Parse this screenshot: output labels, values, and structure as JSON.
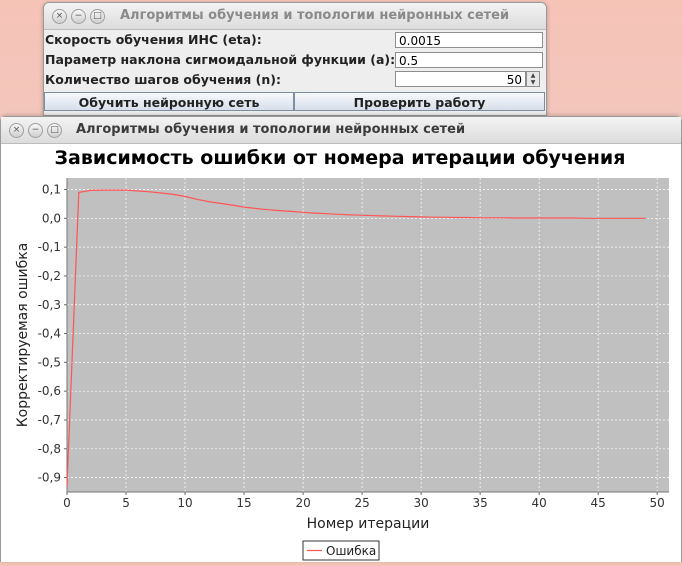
{
  "settings_window": {
    "title": "Алгоритмы обучения и топологии нейронных сетей",
    "fields": {
      "eta_label": "Скорость обучения ИНС (eta):",
      "eta_value": "0.0015",
      "a_label": "Параметр наклона сигмоидальной функции (a):",
      "a_value": "0.5",
      "n_label": "Количество шагов обучения (n):",
      "n_value": "50"
    },
    "buttons": {
      "train": "Обучить нейронную сеть",
      "check": "Проверить работу"
    }
  },
  "chart_window": {
    "title": "Алгоритмы обучения и топологии нейронных сетей"
  },
  "window_controls": {
    "close": "×",
    "minimize": "−",
    "maximize": "□"
  },
  "chart_data": {
    "type": "line",
    "title": "Зависимость ошибки от номера итерации обучения",
    "xlabel": "Номер итерации",
    "ylabel": "Корректируемая ошибка",
    "xlim": [
      0,
      51
    ],
    "ylim": [
      -0.95,
      0.14
    ],
    "x_ticks": [
      0,
      5,
      10,
      15,
      20,
      25,
      30,
      35,
      40,
      45,
      50
    ],
    "y_ticks": [
      0.1,
      0.0,
      -0.1,
      -0.2,
      -0.3,
      -0.4,
      -0.5,
      -0.6,
      -0.7,
      -0.8,
      -0.9
    ],
    "y_tick_labels": [
      "0,1",
      "0,0",
      "-0,1",
      "-0,2",
      "-0,3",
      "-0,4",
      "-0,5",
      "-0,6",
      "-0,7",
      "-0,8",
      "-0,9"
    ],
    "grid": true,
    "legend_position": "bottom-center",
    "background_color": "#c0c0c0",
    "series": [
      {
        "name": "Ошибка",
        "color": "#ff5555",
        "x": [
          0,
          1,
          2,
          3,
          4,
          5,
          6,
          7,
          8,
          9,
          10,
          11,
          12,
          13,
          14,
          15,
          16,
          17,
          18,
          19,
          20,
          21,
          22,
          23,
          24,
          25,
          26,
          27,
          28,
          29,
          30,
          31,
          32,
          33,
          34,
          35,
          36,
          37,
          38,
          39,
          40,
          41,
          42,
          43,
          44,
          45,
          46,
          47,
          48,
          49
        ],
        "values": [
          -0.93,
          0.09,
          0.097,
          0.098,
          0.098,
          0.098,
          0.095,
          0.092,
          0.088,
          0.083,
          0.076,
          0.066,
          0.058,
          0.052,
          0.046,
          0.039,
          0.034,
          0.03,
          0.027,
          0.024,
          0.021,
          0.018,
          0.016,
          0.014,
          0.012,
          0.011,
          0.009,
          0.008,
          0.007,
          0.006,
          0.005,
          0.004,
          0.004,
          0.003,
          0.003,
          0.002,
          0.002,
          0.002,
          0.001,
          0.001,
          0.001,
          0.001,
          0.001,
          0.001,
          0.0,
          0.0,
          0.0,
          0.0,
          0.0,
          0.0
        ]
      }
    ]
  }
}
